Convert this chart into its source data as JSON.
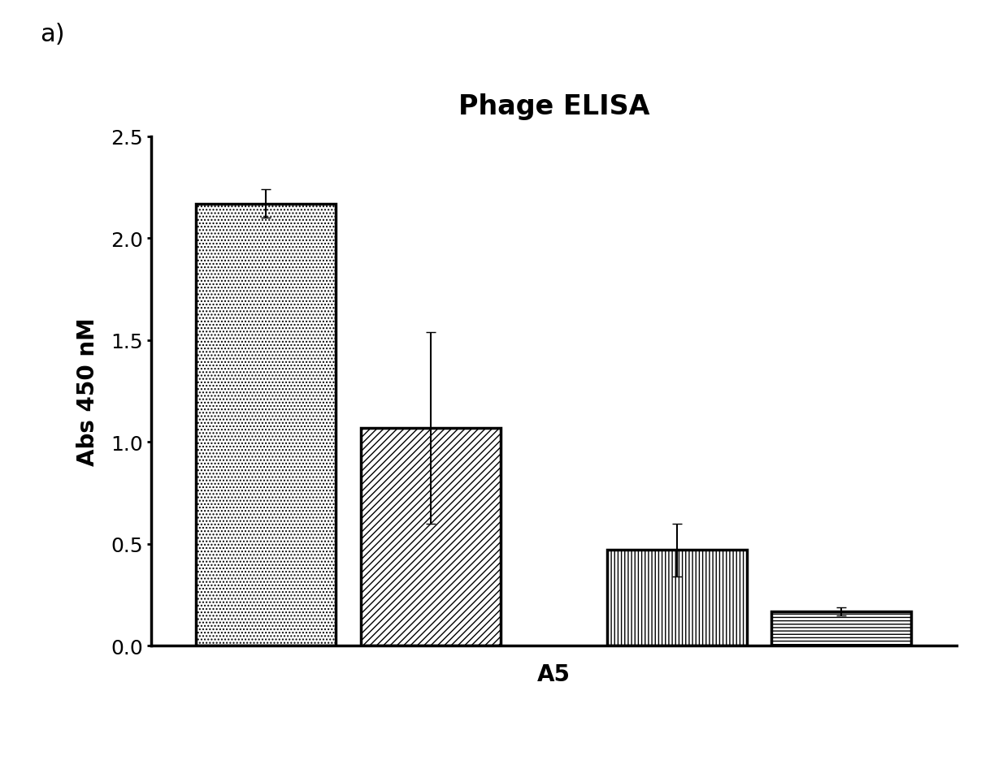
{
  "title": "Phage ELISA",
  "ylabel": "Abs 450 nM",
  "xlabel": "A5",
  "annotation": "a)",
  "ylim": [
    0,
    2.5
  ],
  "yticks": [
    0,
    0.5,
    1.0,
    1.5,
    2.0,
    2.5
  ],
  "bars": [
    {
      "value": 2.17,
      "error": 0.07,
      "hatch": "....",
      "facecolor": "white",
      "edgecolor": "black",
      "x": 1
    },
    {
      "value": 1.07,
      "error": 0.47,
      "hatch": "////",
      "facecolor": "white",
      "edgecolor": "black",
      "x": 2
    },
    {
      "value": 0.47,
      "error": 0.13,
      "hatch": "||||",
      "facecolor": "white",
      "edgecolor": "black",
      "x": 3.5
    },
    {
      "value": 0.17,
      "error": 0.02,
      "hatch": "----",
      "facecolor": "white",
      "edgecolor": "black",
      "x": 4.5
    }
  ],
  "bar_width": 0.85,
  "title_fontsize": 24,
  "label_fontsize": 20,
  "tick_fontsize": 18,
  "annotation_fontsize": 22,
  "background_color": "#ffffff",
  "errorbar_color": "black",
  "errorbar_capsize": 4,
  "errorbar_linewidth": 1.5,
  "spine_linewidth": 2.5
}
